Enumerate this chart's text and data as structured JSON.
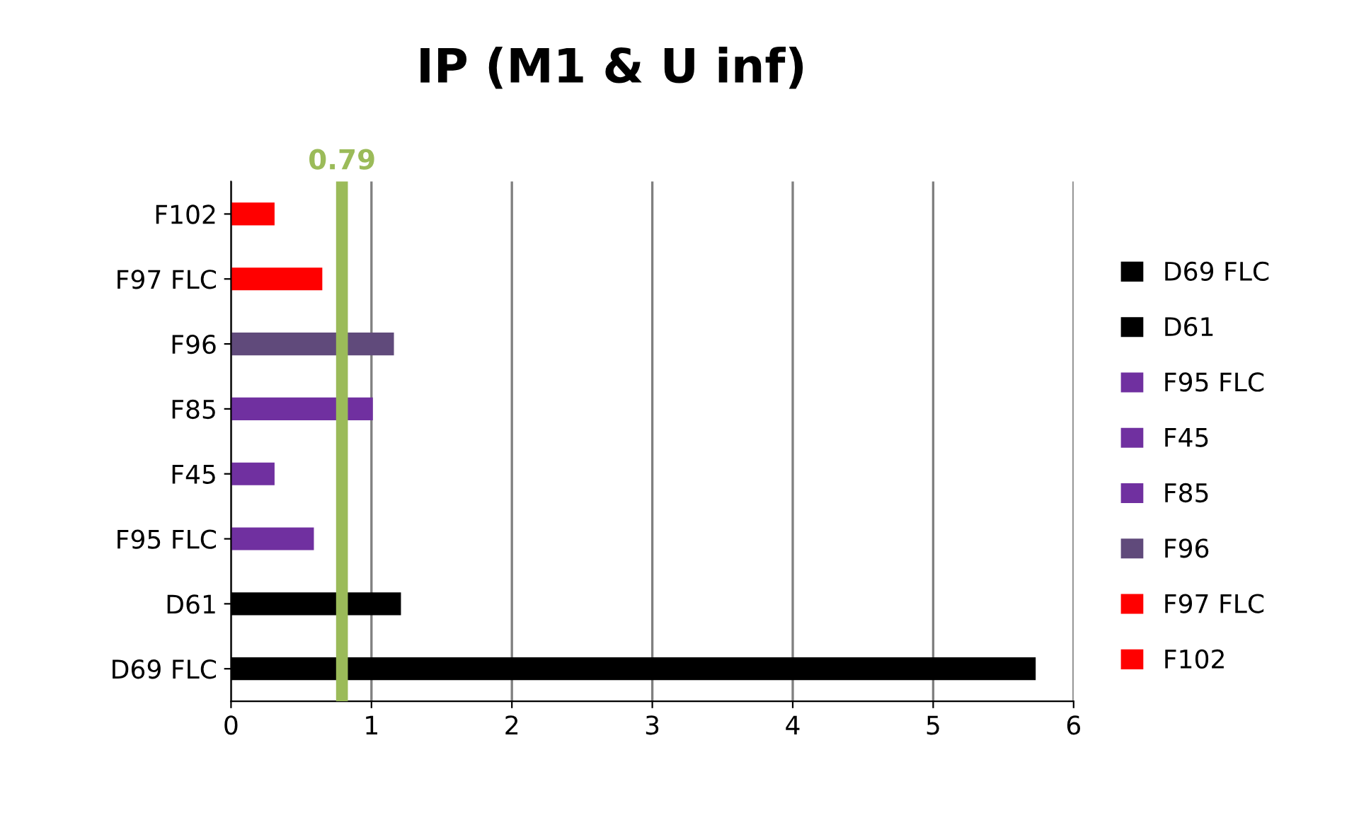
{
  "chart_data": {
    "type": "bar",
    "orientation": "horizontal",
    "title": "IP (M1 & U inf)",
    "categories": [
      "F102",
      "F97 FLC",
      "F96",
      "F85",
      "F45",
      "F95 FLC",
      "D61",
      "D69 FLC"
    ],
    "series": [
      {
        "name": "D69 FLC",
        "color": "#000000",
        "values": [
          null,
          null,
          null,
          null,
          null,
          null,
          null,
          5.73
        ]
      },
      {
        "name": "D61",
        "color": "#000000",
        "values": [
          null,
          null,
          null,
          null,
          null,
          null,
          1.21,
          null
        ]
      },
      {
        "name": "F95 FLC",
        "color": "#7030a0",
        "values": [
          null,
          null,
          null,
          null,
          null,
          0.59,
          null,
          null
        ]
      },
      {
        "name": "F45",
        "color": "#7030a0",
        "values": [
          null,
          null,
          null,
          null,
          0.31,
          null,
          null,
          null
        ]
      },
      {
        "name": "F85",
        "color": "#7030a0",
        "values": [
          null,
          null,
          null,
          1.01,
          null,
          null,
          null,
          null
        ]
      },
      {
        "name": "F96",
        "color": "#604a7b",
        "values": [
          null,
          null,
          1.16,
          null,
          null,
          null,
          null,
          null
        ]
      },
      {
        "name": "F97 FLC",
        "color": "#ff0000",
        "values": [
          null,
          0.65,
          null,
          null,
          null,
          null,
          null,
          null
        ]
      },
      {
        "name": "F102",
        "color": "#ff0000",
        "values": [
          0.31,
          null,
          null,
          null,
          null,
          null,
          null,
          null
        ]
      }
    ],
    "xlim": [
      0,
      6
    ],
    "xticks": [
      0,
      1,
      2,
      3,
      4,
      5,
      6
    ],
    "ref_lines": [
      {
        "axis": "x",
        "value": 0.79,
        "label": "0.79",
        "color": "#9bbb59"
      }
    ],
    "grid": "x",
    "legend": "right"
  }
}
